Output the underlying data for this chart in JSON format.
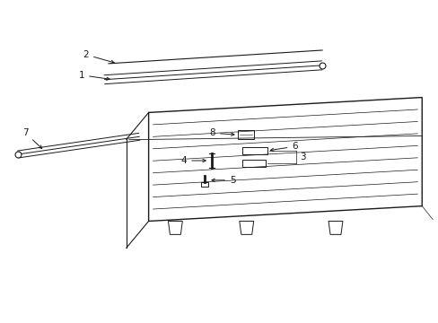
{
  "bg_color": "#ffffff",
  "line_color": "#1a1a1a",
  "text_color": "#1a1a1a",
  "fig_w": 4.89,
  "fig_h": 3.6,
  "dpi": 100,
  "label_fontsize": 7.5
}
